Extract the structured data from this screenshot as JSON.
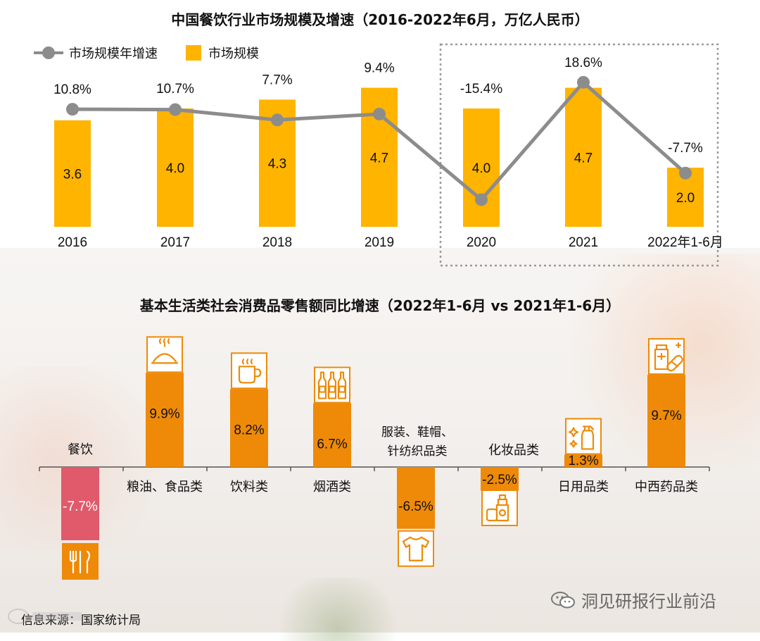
{
  "chart_data": [
    {
      "type": "bar+line",
      "title": "中国餐饮行业市场规模及增速（2016-2022年6月，万亿人民币）",
      "categories": [
        "2016",
        "2017",
        "2018",
        "2019",
        "2020",
        "2021",
        "2022年1-6月"
      ],
      "series": [
        {
          "name": "市场规模",
          "kind": "bar",
          "color": "#ffb400",
          "values": [
            3.6,
            4.0,
            4.3,
            4.7,
            4.0,
            4.7,
            2.0
          ],
          "labels": [
            "3.6",
            "4.0",
            "4.3",
            "4.7",
            "4.0",
            "4.7",
            "2.0"
          ]
        },
        {
          "name": "市场规模年增速",
          "kind": "line",
          "color": "#8c8c8c",
          "values": [
            10.8,
            10.7,
            7.7,
            9.4,
            -15.4,
            18.6,
            -7.7
          ],
          "labels": [
            "10.8%",
            "10.7%",
            "7.7%",
            "9.4%",
            "-15.4%",
            "18.6%",
            "-7.7%"
          ]
        }
      ],
      "bar_ylim": [
        0,
        5.5
      ],
      "line_ylim": [
        -20,
        25
      ],
      "highlight": {
        "from_category": "2020",
        "to_category": "2022年1-6月",
        "style": "dotted-box"
      }
    },
    {
      "type": "bar",
      "title": "基本生活类社会消费品零售额同比增速（2022年1-6月 vs 2021年1-6月）",
      "categories": [
        "餐饮",
        "粮油、食品类",
        "饮料类",
        "烟酒类",
        "服装、鞋帽、针纺织品类",
        "化妆品类",
        "日用品类",
        "中西药品类"
      ],
      "category_display": [
        "餐饮",
        "粮油、食品类",
        "饮料类",
        "烟酒类",
        [
          "服装、鞋帽、",
          "针纺织品类"
        ],
        "化妆品类",
        "日用品类",
        "中西药品类"
      ],
      "values": [
        -7.7,
        9.9,
        8.2,
        6.7,
        -6.5,
        -2.5,
        1.3,
        9.7
      ],
      "labels": [
        "-7.7%",
        "9.9%",
        "8.2%",
        "6.7%",
        "-6.5%",
        "-2.5%",
        "1.3%",
        "9.7%"
      ],
      "icons": [
        "utensils-icon",
        "food-cloche-icon",
        "coffee-mug-icon",
        "bottles-icon",
        "tshirt-icon",
        "cosmetics-icon",
        "cleaning-spray-icon",
        "medicine-icon"
      ],
      "colors": {
        "negative_highlight": "#e05a6c",
        "default": "#ee8a08",
        "icon_outline": "#ee8a08"
      },
      "ylim": [
        -10,
        12
      ]
    }
  ],
  "source_text": "信息来源：国家统计局",
  "watermark_text": "洞见研报行业前沿"
}
